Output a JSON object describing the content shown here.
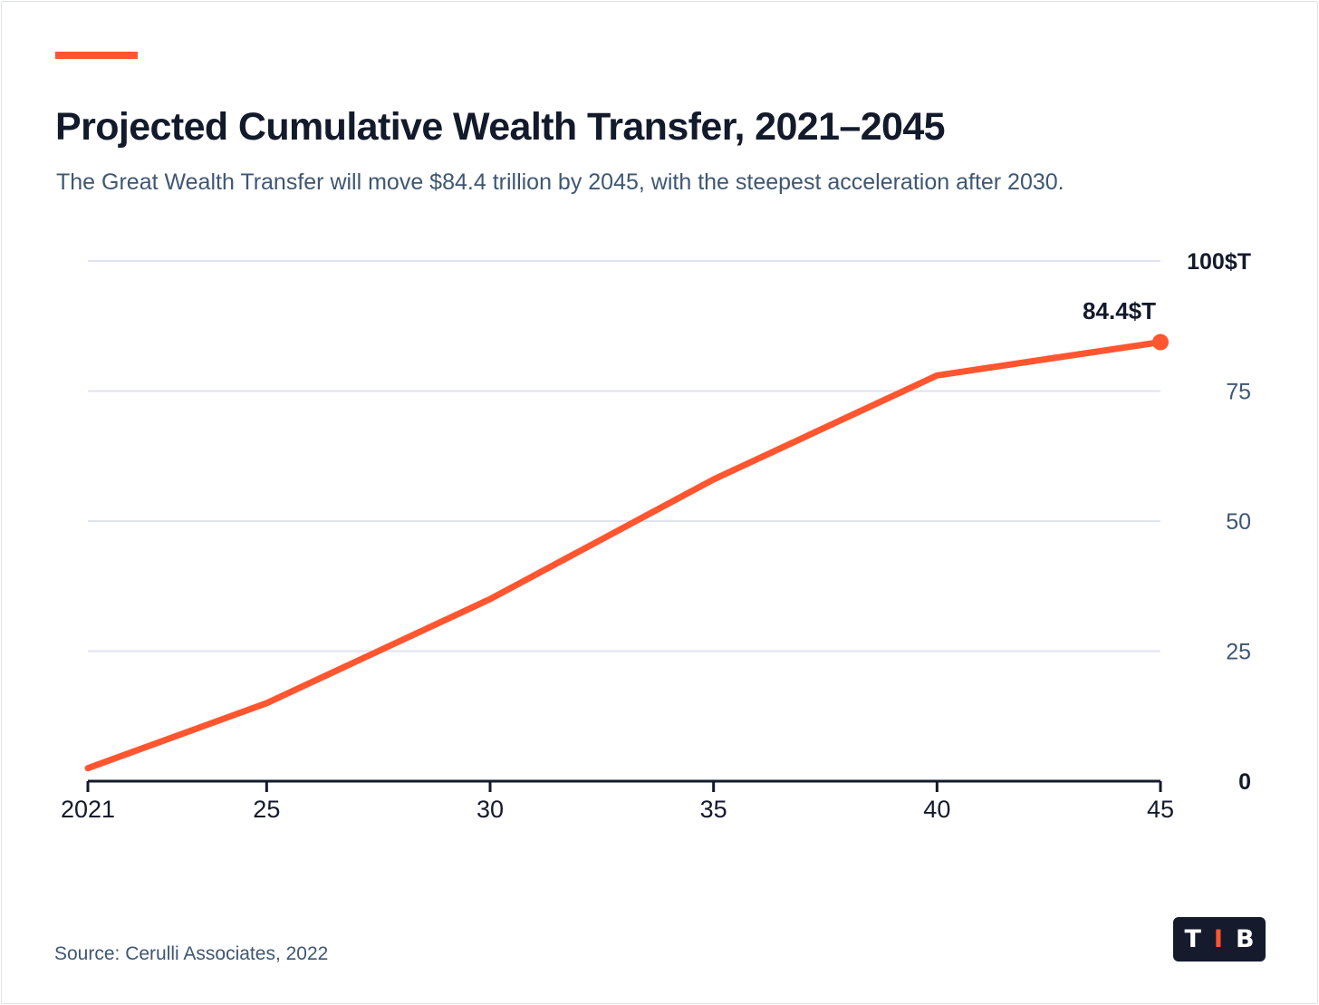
{
  "header": {
    "title": "Projected Cumulative Wealth Transfer, 2021–2045",
    "subtitle": "The Great Wealth Transfer will move $84.4 trillion by 2045, with the steepest acceleration after 2030."
  },
  "footer": {
    "source": "Source: Cerulli Associates, 2022"
  },
  "logo": {
    "letters": [
      "T",
      "I",
      "B"
    ]
  },
  "colors": {
    "accent": "#ff5630",
    "title": "#131a2b",
    "muted": "#3e5773",
    "grid": "#dfe3f0",
    "axis": "#131a2b"
  },
  "chart_data": {
    "type": "line",
    "title": "Projected Cumulative Wealth Transfer, 2021–2045",
    "x": [
      2021,
      2025,
      2030,
      2035,
      2040,
      2045
    ],
    "x_tick_labels": [
      "2021",
      "25",
      "30",
      "35",
      "40",
      "45"
    ],
    "series": [
      {
        "values": [
          2.5,
          15,
          35,
          58,
          78,
          84.4
        ]
      }
    ],
    "ylim": [
      0,
      100
    ],
    "y_ticks": [
      0,
      25,
      50,
      75,
      100
    ],
    "y_tick_labels": [
      "0",
      "25",
      "50",
      "75",
      "100$T"
    ],
    "y_axis_position": "right",
    "grid": true,
    "end_label": "84.4$T"
  }
}
